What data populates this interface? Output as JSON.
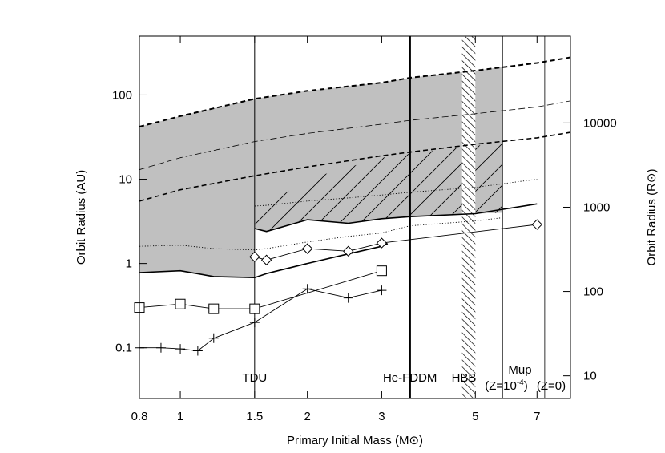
{
  "chart_data": {
    "type": "line",
    "title": "",
    "xlabel": "Primary Initial Mass (M⊙)",
    "ylabel": "Orbit Radius (AU)",
    "ylabel_right": "Orbit Radius (R⊙)",
    "xscale": "log",
    "yscale": "log",
    "xlim": [
      0.8,
      8.4
    ],
    "ylim": [
      0.025,
      500
    ],
    "x_ticks": [
      {
        "value": 0.8,
        "label": "0.8"
      },
      {
        "value": 1,
        "label": "1"
      },
      {
        "value": 1.5,
        "label": "1.5"
      },
      {
        "value": 2,
        "label": "2"
      },
      {
        "value": 3,
        "label": "3"
      },
      {
        "value": 5,
        "label": "5"
      },
      {
        "value": 7,
        "label": "7"
      }
    ],
    "y_ticks": [
      {
        "value": 0.1,
        "label": "0.1"
      },
      {
        "value": 1,
        "label": "1"
      },
      {
        "value": 10,
        "label": "10"
      },
      {
        "value": 100,
        "label": "100"
      }
    ],
    "y2_ticks": [
      {
        "value": 10,
        "label": "10"
      },
      {
        "value": 100,
        "label": "100"
      },
      {
        "value": 1000,
        "label": "1000"
      },
      {
        "value": 10000,
        "label": "10000"
      }
    ],
    "au_to_rsun": 215,
    "regions": [
      {
        "name": "gray-band",
        "fill": "#c0c0c0",
        "upper": [
          [
            0.8,
            42
          ],
          [
            1.0,
            56
          ],
          [
            1.5,
            90
          ],
          [
            2.0,
            112
          ],
          [
            3.0,
            140
          ],
          [
            3.5,
            160
          ],
          [
            5.0,
            195
          ],
          [
            5.8,
            215
          ]
        ],
        "lower": [
          [
            5.8,
            4.0
          ],
          [
            5.0,
            3.9
          ],
          [
            3.5,
            3.6
          ],
          [
            3.0,
            3.4
          ],
          [
            2.5,
            3.0
          ],
          [
            2.0,
            3.3
          ],
          [
            1.6,
            2.4
          ],
          [
            1.5,
            2.6
          ],
          [
            1.5,
            0.68
          ],
          [
            1.2,
            0.7
          ],
          [
            1.0,
            0.82
          ],
          [
            0.8,
            0.78
          ]
        ]
      },
      {
        "name": "hatched-region",
        "hatch": "diagonal",
        "upper": [
          [
            1.5,
            4.0
          ],
          [
            2.0,
            10.0
          ],
          [
            3.0,
            18.0
          ],
          [
            3.5,
            20.0
          ],
          [
            5.0,
            25.0
          ],
          [
            5.8,
            26.5
          ]
        ],
        "lower": [
          [
            5.8,
            4.0
          ],
          [
            5.0,
            3.9
          ],
          [
            3.5,
            3.6
          ],
          [
            3.0,
            3.4
          ],
          [
            2.5,
            3.0
          ],
          [
            2.0,
            3.3
          ],
          [
            1.6,
            2.4
          ],
          [
            1.5,
            2.6
          ]
        ]
      }
    ],
    "series": [
      {
        "name": "upper-thick-dashed",
        "style": "dashed",
        "width": 2,
        "points": [
          [
            0.8,
            42
          ],
          [
            1.0,
            56
          ],
          [
            1.5,
            90
          ],
          [
            2.0,
            112
          ],
          [
            3.0,
            140
          ],
          [
            3.5,
            160
          ],
          [
            5.0,
            195
          ],
          [
            7.0,
            240
          ],
          [
            8.4,
            280
          ]
        ]
      },
      {
        "name": "middle-thin-dashed",
        "style": "dashed-thin",
        "width": 0.8,
        "points": [
          [
            0.8,
            13
          ],
          [
            1.0,
            18
          ],
          [
            1.5,
            28
          ],
          [
            2.0,
            35
          ],
          [
            3.0,
            45
          ],
          [
            3.5,
            50
          ],
          [
            5.0,
            60
          ],
          [
            7.0,
            72
          ],
          [
            8.4,
            85
          ]
        ]
      },
      {
        "name": "lower-thick-dashed",
        "style": "dashed",
        "width": 1.6,
        "points": [
          [
            0.8,
            5.5
          ],
          [
            1.0,
            7.5
          ],
          [
            1.5,
            11
          ],
          [
            2.0,
            14
          ],
          [
            3.0,
            19
          ],
          [
            3.5,
            21
          ],
          [
            5.0,
            26
          ],
          [
            7.0,
            31
          ],
          [
            8.4,
            36
          ]
        ]
      },
      {
        "name": "dotted-upper",
        "style": "dotted",
        "width": 0.9,
        "points": [
          [
            1.5,
            4.8
          ],
          [
            1.6,
            4.9
          ],
          [
            2.0,
            5.5
          ],
          [
            2.5,
            6.0
          ],
          [
            3.0,
            6.5
          ],
          [
            3.5,
            7.0
          ],
          [
            5.0,
            8.0
          ],
          [
            7.0,
            10.0
          ]
        ]
      },
      {
        "name": "dotted-lower",
        "style": "dotted",
        "width": 0.9,
        "points": [
          [
            0.8,
            1.6
          ],
          [
            1.0,
            1.65
          ],
          [
            1.2,
            1.5
          ],
          [
            1.5,
            1.45
          ],
          [
            1.6,
            1.5
          ],
          [
            2.0,
            1.8
          ],
          [
            2.5,
            2.1
          ],
          [
            3.0,
            2.3
          ],
          [
            3.5,
            2.8
          ],
          [
            5.0,
            3.2
          ],
          [
            5.8,
            3.5
          ]
        ]
      },
      {
        "name": "solid-upper",
        "style": "solid",
        "width": 1.6,
        "points": [
          [
            1.5,
            2.6
          ],
          [
            1.6,
            2.4
          ],
          [
            2.0,
            3.3
          ],
          [
            2.5,
            3.0
          ],
          [
            3.0,
            3.4
          ],
          [
            3.5,
            3.6
          ],
          [
            5.0,
            3.9
          ],
          [
            7.0,
            5.1
          ]
        ]
      },
      {
        "name": "solid-lower",
        "style": "solid",
        "width": 1.6,
        "points": [
          [
            0.8,
            0.78
          ],
          [
            1.0,
            0.82
          ],
          [
            1.2,
            0.7
          ],
          [
            1.5,
            0.68
          ],
          [
            1.6,
            0.76
          ],
          [
            2.0,
            1.0
          ],
          [
            2.5,
            1.3
          ],
          [
            3.0,
            1.6
          ],
          [
            3.1,
            1.72
          ]
        ]
      },
      {
        "name": "diamond-series",
        "style": "solid",
        "width": 0.9,
        "marker": "diamond",
        "points": [
          [
            1.5,
            1.2
          ],
          [
            1.6,
            1.1
          ],
          [
            2.0,
            1.5
          ],
          [
            2.5,
            1.4
          ],
          [
            3.0,
            1.75
          ],
          [
            7.0,
            2.9
          ]
        ]
      },
      {
        "name": "square-series",
        "style": "solid",
        "width": 0.9,
        "marker": "square",
        "points": [
          [
            0.8,
            0.3
          ],
          [
            1.0,
            0.33
          ],
          [
            1.2,
            0.29
          ],
          [
            1.5,
            0.29
          ],
          [
            3.0,
            0.82
          ]
        ]
      },
      {
        "name": "plus-series",
        "style": "solid",
        "width": 0.9,
        "marker": "plus",
        "points": [
          [
            0.8,
            0.1
          ],
          [
            0.9,
            0.1
          ],
          [
            1.0,
            0.097
          ],
          [
            1.1,
            0.092
          ],
          [
            1.2,
            0.13
          ],
          [
            1.5,
            0.2
          ],
          [
            2.0,
            0.5
          ],
          [
            2.5,
            0.39
          ],
          [
            3.0,
            0.48
          ]
        ]
      }
    ],
    "vlines": [
      {
        "name": "TDU",
        "x": 1.5,
        "label": "TDU",
        "width": 1
      },
      {
        "name": "He-FDDM",
        "x": 3.5,
        "label": "He-FDDM",
        "width": 2.4
      },
      {
        "name": "Mup-Z1e-4",
        "x": 5.8,
        "width": 0.8
      },
      {
        "name": "Mup-Z0",
        "x": 7.3,
        "width": 0.8
      }
    ],
    "hbb_band": {
      "x0": 4.65,
      "x1": 5.0,
      "label": "HBB"
    },
    "annotations": {
      "mup": "Mup",
      "z_low_prefix": "(Z=10",
      "z_low_exp": "-4",
      "z_low_suffix": ")",
      "z_zero": "(Z=0)"
    }
  }
}
